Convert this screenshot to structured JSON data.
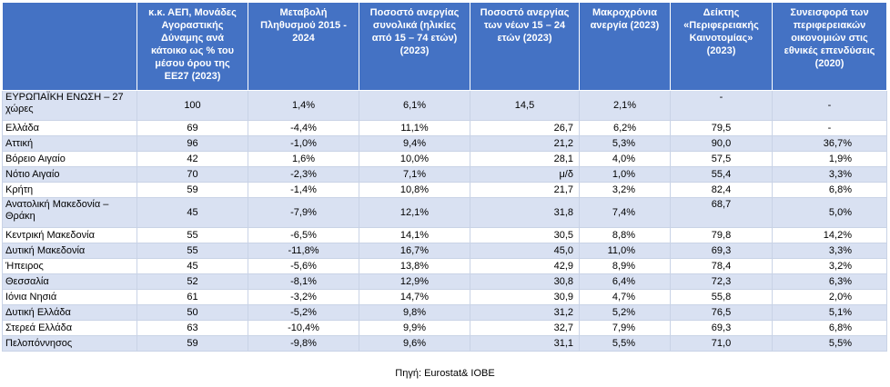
{
  "table": {
    "headers": [
      "",
      "κ.κ. ΑΕΠ, Μονάδες Αγοραστικής Δύναμης ανά κάτοικο ως % του μέσου όρου της ΕΕ27 (2023)",
      "Μεταβολή Πληθυσμού 2015 - 2024",
      "Ποσοστό ανεργίας συνολικά (ηλικίες από 15 – 74 ετών) (2023)",
      "Ποσοστό ανεργίας των νέων 15 – 24 ετών (2023)",
      "Μακροχρόνια ανεργία (2023)",
      "Δείκτης «Περιφερειακής Καινοτομίας» (2023)",
      "Συνεισφορά των περιφερειακών οικονομιών στις εθνικές επενδύσεις (2020)"
    ],
    "rows": [
      {
        "name": "ΕΥΡΩΠΑΪΚΗ ΕΝΩΣΗ – 27 χώρες",
        "gdp": "100",
        "pop": "1,4%",
        "unemp": "6,1%",
        "youth": "14,5",
        "longterm": "2,1%",
        "innov": "-",
        "invest": "-"
      },
      {
        "name": "Ελλάδα",
        "gdp": "69",
        "pop": "-4,4%",
        "unemp": "11,1%",
        "youth": "26,7",
        "longterm": "6,2%",
        "innov": "79,5",
        "invest": "-"
      },
      {
        "name": "Αττική",
        "gdp": "96",
        "pop": "-1,0%",
        "unemp": "9,4%",
        "youth": "21,2",
        "longterm": "5,3%",
        "innov": "90,0",
        "invest": "36,7%"
      },
      {
        "name": "Βόρειο Αιγαίο",
        "gdp": "42",
        "pop": "1,6%",
        "unemp": "10,0%",
        "youth": "28,1",
        "longterm": "4,0%",
        "innov": "57,5",
        "invest": "1,9%"
      },
      {
        "name": "Νότιο Αιγαίο",
        "gdp": "70",
        "pop": "-2,3%",
        "unemp": "7,1%",
        "youth": "μ/δ",
        "longterm": "1,0%",
        "innov": "55,4",
        "invest": "3,3%"
      },
      {
        "name": "Κρήτη",
        "gdp": "59",
        "pop": "-1,4%",
        "unemp": "10,8%",
        "youth": "21,7",
        "longterm": "3,2%",
        "innov": "82,4",
        "invest": "6,8%"
      },
      {
        "name": "Ανατολική Μακεδονία – Θράκη",
        "gdp": "45",
        "pop": "-7,9%",
        "unemp": "12,1%",
        "youth": "31,8",
        "longterm": "7,4%",
        "innov": "68,7",
        "invest": "5,0%"
      },
      {
        "name": "Κεντρική Μακεδονία",
        "gdp": "55",
        "pop": "-6,5%",
        "unemp": "14,1%",
        "youth": "30,5",
        "longterm": "8,8%",
        "innov": "79,8",
        "invest": "14,2%"
      },
      {
        "name": "Δυτική Μακεδονία",
        "gdp": "55",
        "pop": "-11,8%",
        "unemp": "16,7%",
        "youth": "45,0",
        "longterm": "11,0%",
        "innov": "69,3",
        "invest": "3,3%"
      },
      {
        "name": "Ήπειρος",
        "gdp": "45",
        "pop": "-5,6%",
        "unemp": "13,8%",
        "youth": "42,9",
        "longterm": "8,9%",
        "innov": "78,4",
        "invest": "3,2%"
      },
      {
        "name": "Θεσσαλία",
        "gdp": "52",
        "pop": "-8,1%",
        "unemp": "12,9%",
        "youth": "30,8",
        "longterm": "6,4%",
        "innov": "72,3",
        "invest": "6,3%"
      },
      {
        "name": "Ιόνια Νησιά",
        "gdp": "61",
        "pop": "-3,2%",
        "unemp": "14,7%",
        "youth": "30,9",
        "longterm": "4,7%",
        "innov": "55,8",
        "invest": "2,0%"
      },
      {
        "name": "Δυτική Ελλάδα",
        "gdp": "50",
        "pop": "-5,2%",
        "unemp": "9,8%",
        "youth": "31,2",
        "longterm": "5,2%",
        "innov": "76,5",
        "invest": "5,1%"
      },
      {
        "name": "Στερεά Ελλάδα",
        "gdp": "63",
        "pop": "-10,4%",
        "unemp": "9,9%",
        "youth": "32,7",
        "longterm": "7,9%",
        "innov": "69,3",
        "invest": "6,8%"
      },
      {
        "name": "Πελοπόννησος",
        "gdp": "59",
        "pop": "-9,8%",
        "unemp": "9,6%",
        "youth": "31,1",
        "longterm": "5,5%",
        "innov": "71,0",
        "invest": "5,5%"
      }
    ]
  },
  "source": "Πηγή: Eurostat& ΙΟΒΕ",
  "colors": {
    "header_bg": "#4472c4",
    "alt_row_bg": "#d9e1f2"
  }
}
